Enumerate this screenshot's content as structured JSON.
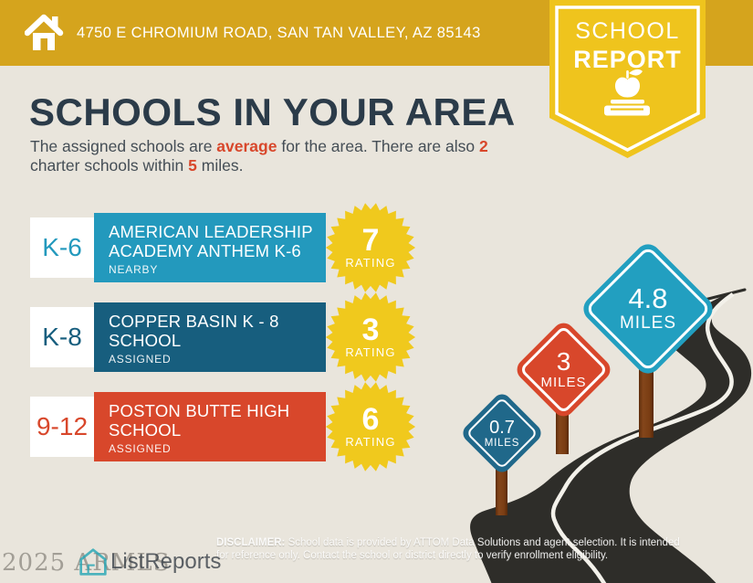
{
  "header": {
    "address": "4750 E CHROMIUM ROAD, SAN TAN VALLEY, AZ 85143"
  },
  "badge": {
    "line1": "SCHOOL",
    "line2": "REPORT"
  },
  "title": "SCHOOLS IN YOUR AREA",
  "intro": {
    "seg1": "The assigned schools are ",
    "highlight1": "average",
    "seg2": " for the area. There are also ",
    "highlight2": "2",
    "seg3": "charter schools within ",
    "highlight3": "5",
    "seg4": " miles."
  },
  "schools": [
    {
      "grades": "K-6",
      "name": "AMERICAN LEADERSHIP ACADEMY ANTHEM K-6",
      "status": "NEARBY",
      "rating": "7",
      "rating_label": "RATING",
      "color": "#2399bd"
    },
    {
      "grades": "K-8",
      "name": "COPPER BASIN K - 8 SCHOOL",
      "status": "ASSIGNED",
      "rating": "3",
      "rating_label": "RATING",
      "color": "#175e7e"
    },
    {
      "grades": "9-12",
      "name": "POSTON BUTTE HIGH SCHOOL",
      "status": "ASSIGNED",
      "rating": "6",
      "rating_label": "RATING",
      "color": "#d8472b"
    }
  ],
  "distance_signs": [
    {
      "value": "0.7",
      "unit": "MILES",
      "color": "#20688a"
    },
    {
      "value": "3",
      "unit": "MILES",
      "color": "#d8472b"
    },
    {
      "value": "4.8",
      "unit": "MILES",
      "color": "#229fc0"
    }
  ],
  "disclaimer": {
    "label": "DISCLAIMER:",
    "line1_rest": " School data is provided by ATTOM Data Solutions and agent selection. It is intended",
    "line2": "for reference only. Contact the school or district directly to verify enrollment eligibility."
  },
  "footer": {
    "watermark": "2025 ARMLS",
    "logo_text": "ListReports"
  },
  "icons": {
    "header_icon": "house-icon",
    "badge_icons": [
      "apple-icon",
      "book-icon"
    ],
    "logo_icon": "house-outline-icon"
  },
  "colors": {
    "header_gold": "#d5a41d",
    "badge_yellow": "#efc41d",
    "star_yellow": "#f0c91d",
    "accent_red": "#d8472b",
    "title_navy": "#2b3b49",
    "background_cream": "#e9e5dc",
    "road_dark": "#2e2d29",
    "post_brown": "#7a3d13",
    "logo_teal": "#28a7b6"
  }
}
